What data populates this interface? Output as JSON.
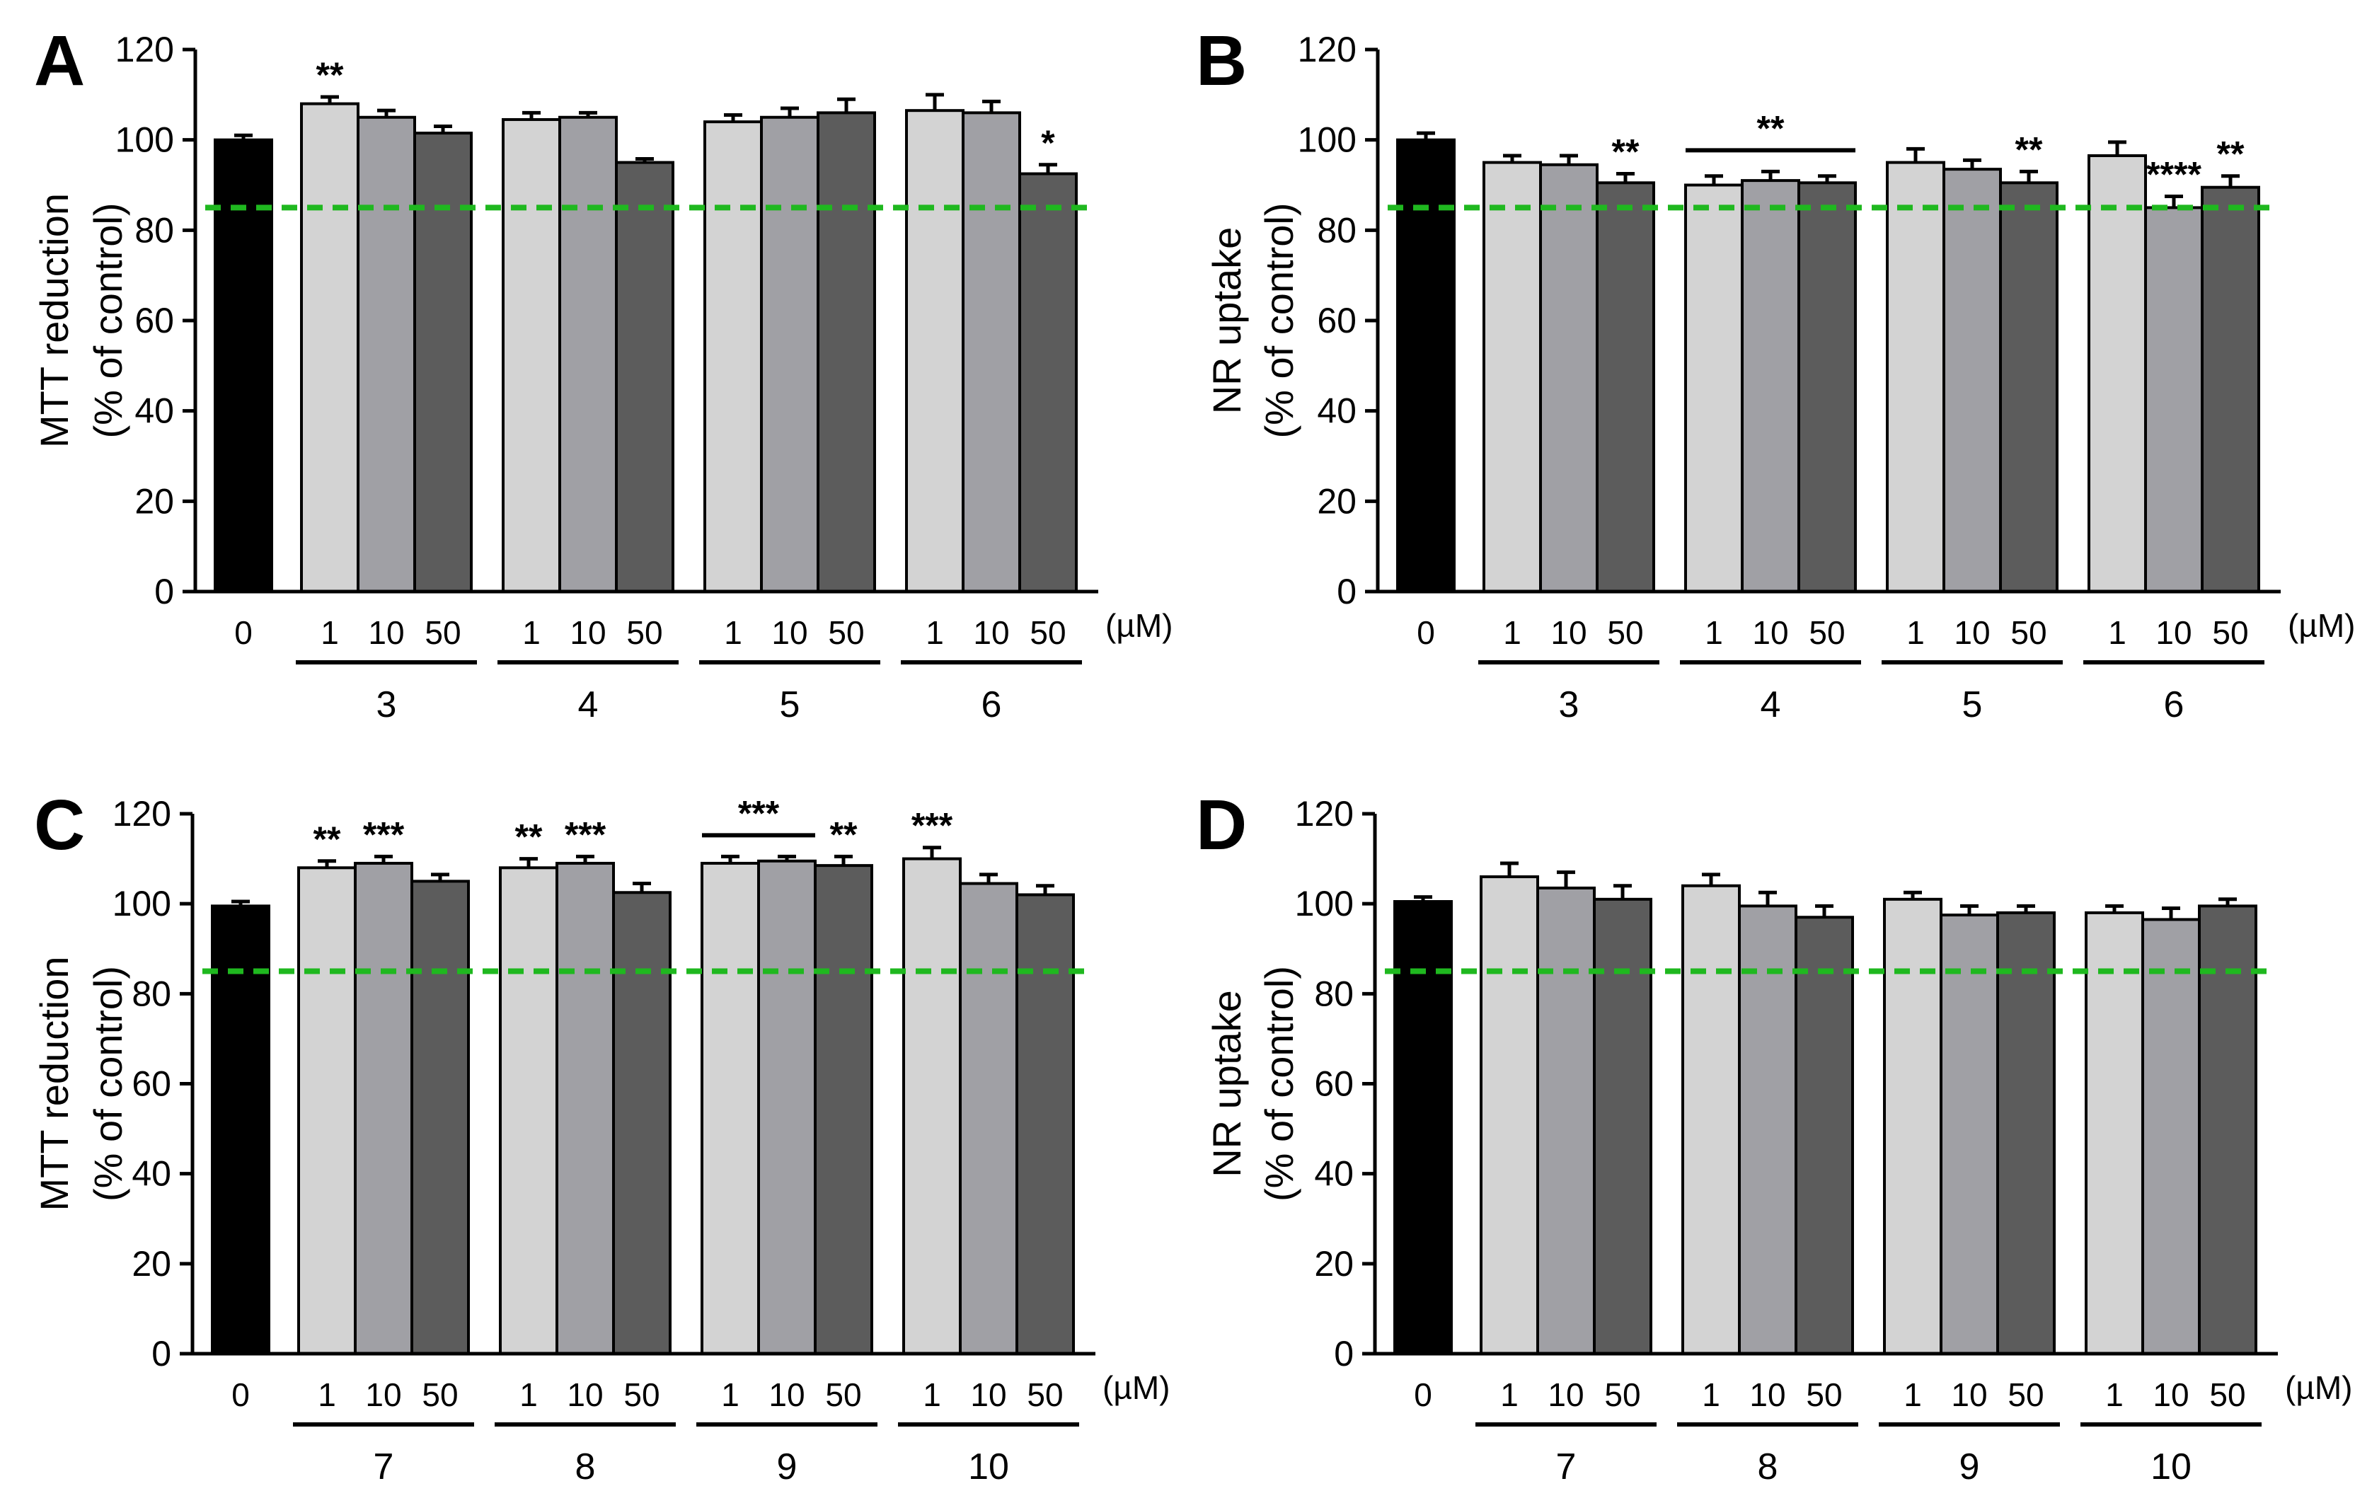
{
  "figure": {
    "dose_unit": "(µM)",
    "dose_labels": [
      "1",
      "10",
      "50"
    ],
    "control_label": "0",
    "reference_line_value": 85,
    "colors": {
      "control": "#000000",
      "dose_1": "#d3d3d3",
      "dose_10": "#a0a0a5",
      "dose_50": "#5c5c5c",
      "reference_line": "#1fb81f",
      "axis": "#000000"
    }
  },
  "chart_data": [
    {
      "panel": "A",
      "type": "bar",
      "ylabel": "MTT reduction",
      "ylabel2": "(% of control)",
      "ylim": [
        0,
        120
      ],
      "yticks": [
        0,
        20,
        40,
        60,
        80,
        100,
        120
      ],
      "control": {
        "value": 100,
        "error": 1
      },
      "groups": [
        {
          "label": "3",
          "values": [
            108,
            105,
            101.5
          ],
          "errors": [
            1.5,
            1.5,
            1.5
          ],
          "stars": [
            "**",
            "",
            ""
          ]
        },
        {
          "label": "4",
          "values": [
            104.5,
            105,
            95
          ],
          "errors": [
            1.5,
            1,
            0.8
          ],
          "stars": [
            "",
            "",
            ""
          ]
        },
        {
          "label": "5",
          "values": [
            104,
            105,
            106
          ],
          "errors": [
            1.5,
            2,
            3
          ],
          "stars": [
            "",
            "",
            ""
          ]
        },
        {
          "label": "6",
          "values": [
            106.5,
            106,
            92.5
          ],
          "errors": [
            3.5,
            2.5,
            2
          ],
          "stars": [
            "",
            "",
            "*"
          ]
        }
      ],
      "brackets": []
    },
    {
      "panel": "B",
      "type": "bar",
      "ylabel": "NR uptake",
      "ylabel2": "(% of control)",
      "ylim": [
        0,
        120
      ],
      "yticks": [
        0,
        20,
        40,
        60,
        80,
        100,
        120
      ],
      "control": {
        "value": 100,
        "error": 1.5
      },
      "groups": [
        {
          "label": "3",
          "values": [
            95,
            94.5,
            90.5
          ],
          "errors": [
            1.5,
            2,
            2
          ],
          "stars": [
            "",
            "",
            "**"
          ]
        },
        {
          "label": "4",
          "values": [
            90,
            91,
            90.5
          ],
          "errors": [
            2,
            2,
            1.5
          ],
          "stars": [
            "",
            "",
            ""
          ]
        },
        {
          "label": "5",
          "values": [
            95,
            93.5,
            90.5
          ],
          "errors": [
            3,
            2,
            2.5
          ],
          "stars": [
            "",
            "",
            "**"
          ]
        },
        {
          "label": "6",
          "values": [
            96.5,
            85,
            89.5
          ],
          "errors": [
            3,
            2.5,
            2.5
          ],
          "stars": [
            "",
            "****",
            "**"
          ]
        }
      ],
      "brackets": [
        {
          "group": 1,
          "from": 0,
          "to": 2,
          "text": "**"
        }
      ]
    },
    {
      "panel": "C",
      "type": "bar",
      "ylabel": "MTT reduction",
      "ylabel2": "(% of control)",
      "ylim": [
        0,
        120
      ],
      "yticks": [
        0,
        20,
        40,
        60,
        80,
        100,
        120
      ],
      "control": {
        "value": 99.5,
        "error": 1
      },
      "groups": [
        {
          "label": "7",
          "values": [
            108,
            109,
            105
          ],
          "errors": [
            1.5,
            1.5,
            1.5
          ],
          "stars": [
            "**",
            "***",
            ""
          ]
        },
        {
          "label": "8",
          "values": [
            108,
            109,
            102.5
          ],
          "errors": [
            2,
            1.5,
            2
          ],
          "stars": [
            "**",
            "***",
            ""
          ]
        },
        {
          "label": "9",
          "values": [
            109,
            109.5,
            108.5
          ],
          "errors": [
            1.5,
            1,
            2
          ],
          "stars": [
            "",
            "",
            "**"
          ]
        },
        {
          "label": "10",
          "values": [
            110,
            104.5,
            102
          ],
          "errors": [
            2.5,
            2,
            2
          ],
          "stars": [
            "***",
            "",
            ""
          ]
        }
      ],
      "brackets": [
        {
          "group": 2,
          "from": 0,
          "to": 1,
          "text": "***"
        }
      ]
    },
    {
      "panel": "D",
      "type": "bar",
      "ylabel": "NR uptake",
      "ylabel2": "(% of control)",
      "ylim": [
        0,
        120
      ],
      "yticks": [
        0,
        20,
        40,
        60,
        80,
        100,
        120
      ],
      "control": {
        "value": 100.5,
        "error": 1
      },
      "groups": [
        {
          "label": "7",
          "values": [
            106,
            103.5,
            101
          ],
          "errors": [
            3,
            3.5,
            3
          ],
          "stars": [
            "",
            "",
            ""
          ]
        },
        {
          "label": "8",
          "values": [
            104,
            99.5,
            97
          ],
          "errors": [
            2.5,
            3,
            2.5
          ],
          "stars": [
            "",
            "",
            ""
          ]
        },
        {
          "label": "9",
          "values": [
            101,
            97.5,
            98
          ],
          "errors": [
            1.5,
            2,
            1.5
          ],
          "stars": [
            "",
            "",
            ""
          ]
        },
        {
          "label": "10",
          "values": [
            98,
            96.5,
            99.5
          ],
          "errors": [
            1.5,
            2.5,
            1.5
          ],
          "stars": [
            "",
            "",
            ""
          ]
        }
      ],
      "brackets": []
    }
  ]
}
